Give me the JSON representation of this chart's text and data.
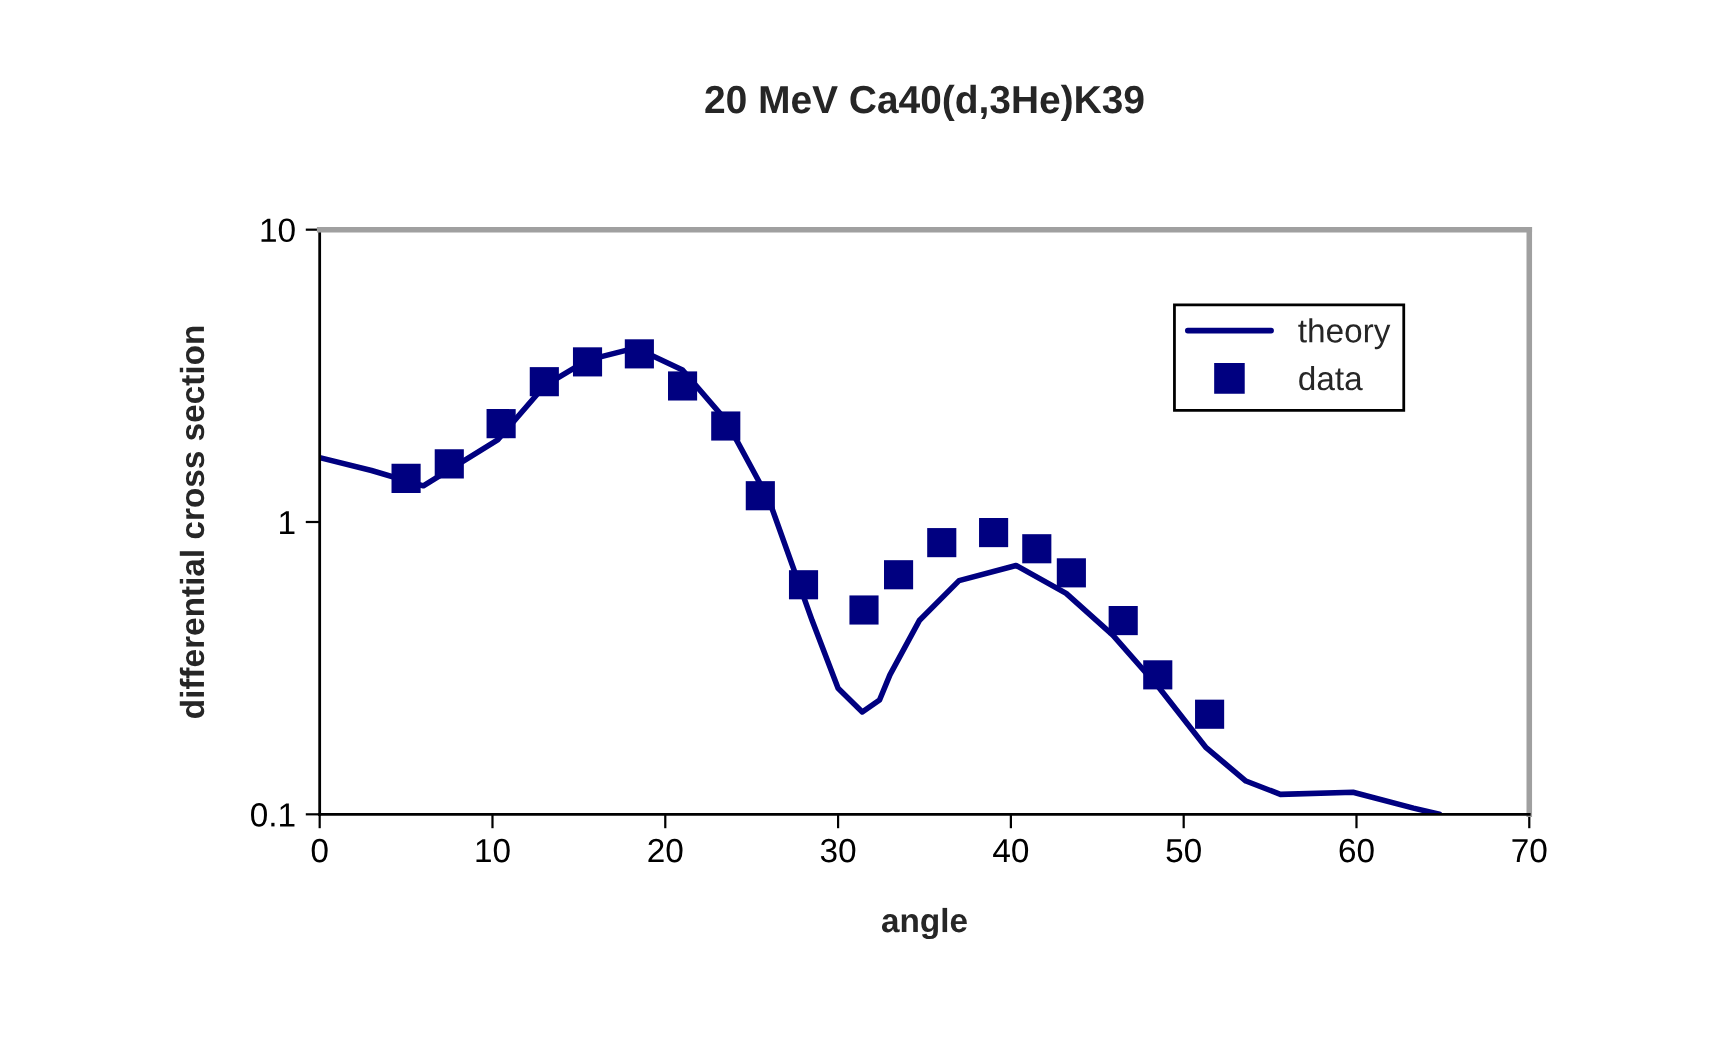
{
  "chart_data": {
    "type": "line",
    "title": "20 MeV Ca40(d,3He)K39",
    "xlabel": "angle",
    "ylabel": "differential cross section",
    "log": "y",
    "xlim": [
      0,
      70
    ],
    "xticks": [
      0,
      10,
      20,
      30,
      40,
      50,
      60,
      70
    ],
    "ylim": [
      0.1,
      10
    ],
    "yticks": [
      0.1,
      1,
      10
    ],
    "grid": false,
    "legend": "top right",
    "series": [
      {
        "name": "theory",
        "color": "#000080",
        "line_style": "solid",
        "marker": "none",
        "x": [
          0,
          3,
          6,
          10.3,
          13,
          15.5,
          18.3,
          21,
          23.5,
          26,
          28.5,
          30,
          31.4,
          32.4,
          33,
          34.7,
          37,
          40.3,
          43.2,
          45.9,
          48.6,
          51.3,
          53.6,
          55.6,
          59.8,
          63.3,
          64.8
        ],
        "values": [
          1.66,
          1.5,
          1.33,
          1.91,
          2.92,
          3.58,
          3.94,
          3.31,
          2.23,
          1.19,
          0.46,
          0.27,
          0.224,
          0.246,
          0.3,
          0.46,
          0.63,
          0.71,
          0.57,
          0.41,
          0.27,
          0.169,
          0.13,
          0.117,
          0.119,
          0.105,
          0.1
        ]
      },
      {
        "name": "data",
        "type": "scatter",
        "color": "#000080",
        "marker": "square",
        "x": [
          5,
          7.5,
          10.5,
          13,
          15.5,
          18.5,
          21,
          23.5,
          25.5,
          28,
          31.5,
          33.5,
          36,
          39,
          41.5,
          43.5,
          46.5,
          48.5,
          51.5
        ],
        "values": [
          1.41,
          1.58,
          2.17,
          3.02,
          3.53,
          3.76,
          2.92,
          2.13,
          1.23,
          0.61,
          0.5,
          0.66,
          0.85,
          0.92,
          0.81,
          0.67,
          0.46,
          0.3,
          0.22
        ]
      }
    ]
  }
}
